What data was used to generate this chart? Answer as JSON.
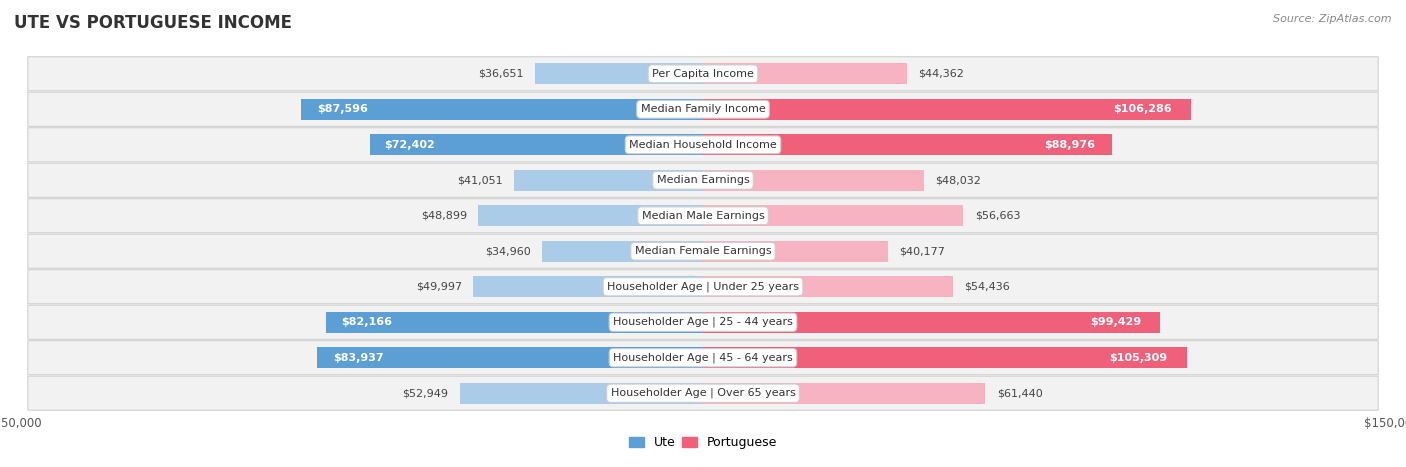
{
  "title": "Ute vs Portuguese Income",
  "title_display": "UTE VS PORTUGUESE INCOME",
  "source": "Source: ZipAtlas.com",
  "categories": [
    "Per Capita Income",
    "Median Family Income",
    "Median Household Income",
    "Median Earnings",
    "Median Male Earnings",
    "Median Female Earnings",
    "Householder Age | Under 25 years",
    "Householder Age | 25 - 44 years",
    "Householder Age | 45 - 64 years",
    "Householder Age | Over 65 years"
  ],
  "ute_values": [
    36651,
    87596,
    72402,
    41051,
    48899,
    34960,
    49997,
    82166,
    83937,
    52949
  ],
  "portuguese_values": [
    44362,
    106286,
    88976,
    48032,
    56663,
    40177,
    54436,
    99429,
    105309,
    61440
  ],
  "ute_labels": [
    "$36,651",
    "$87,596",
    "$72,402",
    "$41,051",
    "$48,899",
    "$34,960",
    "$49,997",
    "$82,166",
    "$83,937",
    "$52,949"
  ],
  "portuguese_labels": [
    "$44,362",
    "$106,286",
    "$88,976",
    "$48,032",
    "$56,663",
    "$40,177",
    "$54,436",
    "$99,429",
    "$105,309",
    "$61,440"
  ],
  "ute_color_light": "#aacce8",
  "ute_color_strong": "#5b9fd4",
  "portuguese_color_light": "#f7b3c2",
  "portuguese_color_strong": "#f0607a",
  "ute_threshold": 65000,
  "portuguese_threshold": 75000,
  "max_value": 150000,
  "bar_height": 0.58,
  "title_fontsize": 12,
  "label_fontsize": 8,
  "category_fontsize": 8,
  "legend_fontsize": 9,
  "source_fontsize": 8
}
